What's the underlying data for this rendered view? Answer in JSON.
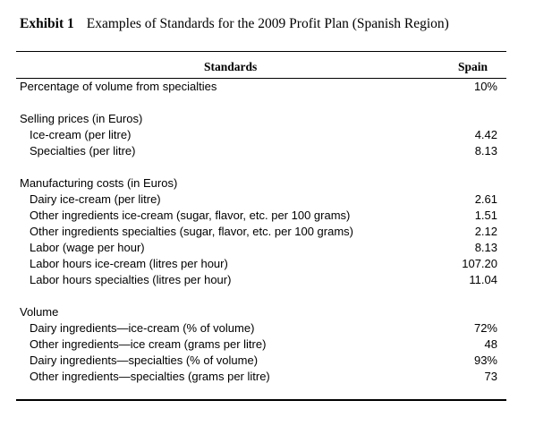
{
  "exhibit": {
    "label": "Exhibit 1",
    "title": "Examples of Standards for the 2009 Profit Plan (Spanish Region)"
  },
  "table": {
    "col_standards": "Standards",
    "col_spain": "Spain",
    "rows": [
      {
        "label": "Percentage of volume from specialties",
        "value": "10%",
        "indent": false
      },
      {
        "label": "",
        "value": "",
        "indent": false,
        "gap": true
      },
      {
        "label": "Selling prices (in Euros)",
        "value": "",
        "indent": false
      },
      {
        "label": "Ice-cream (per litre)",
        "value": "4.42",
        "indent": true
      },
      {
        "label": "Specialties (per litre)",
        "value": "8.13",
        "indent": true
      },
      {
        "label": "",
        "value": "",
        "indent": false,
        "gap": true
      },
      {
        "label": "Manufacturing costs (in Euros)",
        "value": "",
        "indent": false
      },
      {
        "label": "Dairy ice-cream (per litre)",
        "value": "2.61",
        "indent": true
      },
      {
        "label": "Other ingredients ice-cream (sugar, flavor, etc. per 100 grams)",
        "value": "1.51",
        "indent": true
      },
      {
        "label": "Other ingredients specialties (sugar, flavor, etc. per 100 grams)",
        "value": "2.12",
        "indent": true
      },
      {
        "label": "Labor (wage per hour)",
        "value": "8.13",
        "indent": true
      },
      {
        "label": "Labor hours ice-cream (litres per hour)",
        "value": "107.20",
        "indent": true
      },
      {
        "label": "Labor hours specialties (litres per hour)",
        "value": "11.04",
        "indent": true
      },
      {
        "label": "",
        "value": "",
        "indent": false,
        "gap": true
      },
      {
        "label": "Volume",
        "value": "",
        "indent": false
      },
      {
        "label": "Dairy ingredients—ice-cream (% of volume)",
        "value": "72%",
        "indent": true
      },
      {
        "label": "Other ingredients—ice cream (grams per litre)",
        "value": "48",
        "indent": true
      },
      {
        "label": "Dairy ingredients—specialties (% of volume)",
        "value": "93%",
        "indent": true
      },
      {
        "label": "Other ingredients—specialties (grams per litre)",
        "value": "73",
        "indent": true
      }
    ]
  }
}
